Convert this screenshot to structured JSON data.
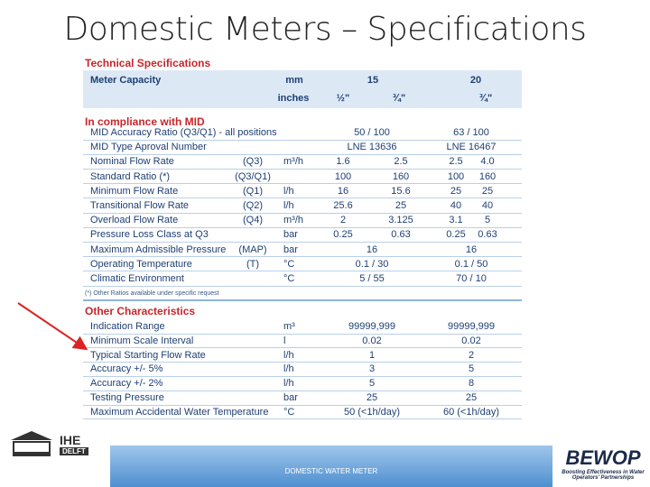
{
  "title": "Domestic Meters – Specifications",
  "table": {
    "heading": "Technical Specifications",
    "header": {
      "label": "Meter Capacity",
      "unit": "mm",
      "sizes": [
        "15",
        "20"
      ]
    },
    "subheader": {
      "unit": "inches",
      "values": [
        "½\"",
        "¾\"",
        "¾\""
      ]
    },
    "sections": [
      {
        "title": "In compliance with MID",
        "rows": [
          {
            "label": "MID Accuracy Ratio (Q3/Q1) - all positions",
            "values": [
              "50 / 100",
              "63 / 100"
            ]
          },
          {
            "label": "MID Type Aproval Number",
            "values": [
              "LNE 13636",
              "LNE 16467"
            ]
          },
          {
            "label": "Nominal Flow Rate",
            "code": "(Q3)",
            "unit": "m³/h",
            "values": [
              "1.6",
              "2.5",
              "2.5",
              "4.0"
            ]
          },
          {
            "label": "Standard Ratio (*)",
            "code": "(Q3/Q1)",
            "values": [
              "100",
              "160",
              "100",
              "160"
            ]
          },
          {
            "label": "Minimum Flow Rate",
            "code": "(Q1)",
            "unit": "l/h",
            "values": [
              "16",
              "15.6",
              "25",
              "25"
            ]
          },
          {
            "label": "Transitional Flow Rate",
            "code": "(Q2)",
            "unit": "l/h",
            "values": [
              "25.6",
              "25",
              "40",
              "40"
            ]
          },
          {
            "label": "Overload Flow Rate",
            "code": "(Q4)",
            "unit": "m³/h",
            "values": [
              "2",
              "3.125",
              "3.1",
              "5"
            ]
          },
          {
            "label": "Pressure Loss Class at Q3",
            "unit": "bar",
            "values": [
              "0.25",
              "0.63",
              "0.25",
              "0.63"
            ]
          },
          {
            "label": "Maximum Admissible Pressure",
            "code": "(MAP)",
            "unit": "bar",
            "values": [
              "16",
              "16"
            ]
          },
          {
            "label": "Operating Temperature",
            "code": "(T)",
            "unit": "°C",
            "values": [
              "0.1 / 30",
              "0.1 / 50"
            ]
          },
          {
            "label": "Climatic Environment",
            "unit": "°C",
            "values": [
              "5 / 55",
              "70 / 10"
            ]
          }
        ],
        "footnote": "(*) Other Ratios available under specific request"
      },
      {
        "title": "Other Characteristics",
        "rows": [
          {
            "label": "Indication Range",
            "unit": "m³",
            "values": [
              "99999,999",
              "99999,999"
            ]
          },
          {
            "label": "Minimum Scale Interval",
            "unit": "l",
            "values": [
              "0.02",
              "0.02"
            ]
          },
          {
            "label": "Typical Starting Flow Rate",
            "unit": "l/h",
            "values": [
              "1",
              "2"
            ]
          },
          {
            "label": "Accuracy +/- 5%",
            "unit": "l/h",
            "values": [
              "3",
              "5"
            ]
          },
          {
            "label": "Accuracy +/- 2%",
            "unit": "l/h",
            "values": [
              "5",
              "8"
            ]
          },
          {
            "label": "Testing Pressure",
            "unit": "bar",
            "values": [
              "25",
              "25"
            ]
          },
          {
            "label": "Maximum Accidental Water Temperature",
            "unit": "°C",
            "values": [
              "50 (<1h/day)",
              "60 (<1h/day)"
            ]
          }
        ]
      }
    ]
  },
  "footer": {
    "caption": "DOMESTIC WATER METER",
    "left_logo": {
      "name": "IHE",
      "sub": "DELFT"
    },
    "right_logo": {
      "name": "BEWOP",
      "tagline": "Boosting Effectiveness in Water Operators' Partnerships"
    }
  }
}
